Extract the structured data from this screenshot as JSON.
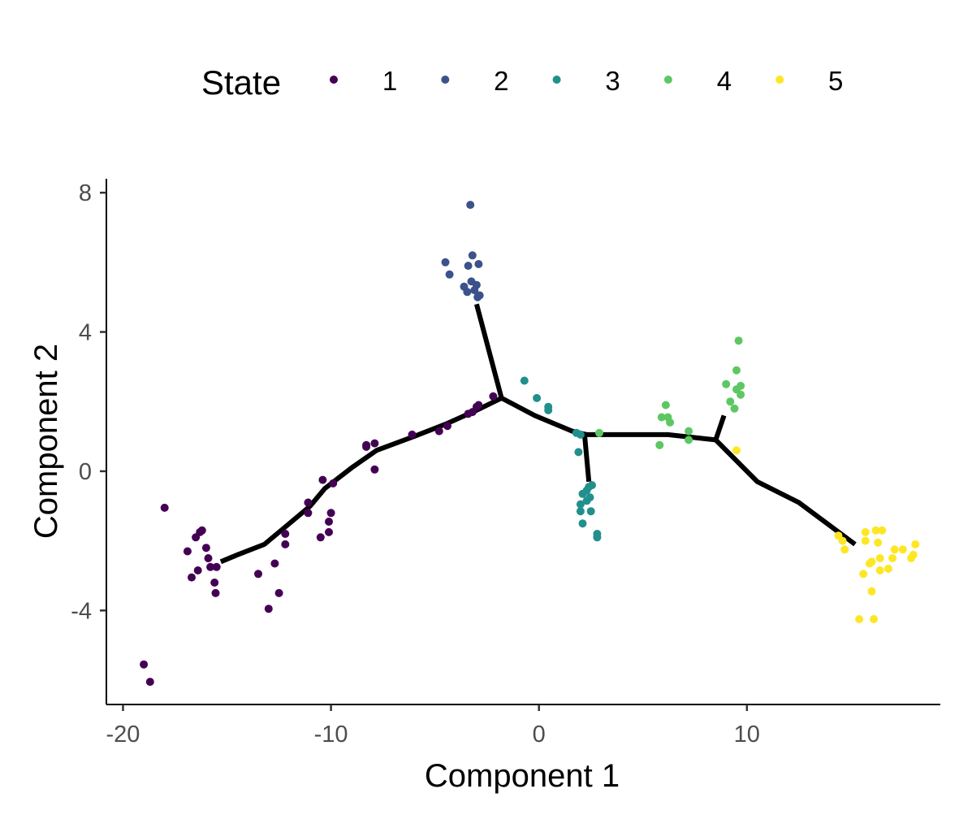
{
  "chart_data": {
    "type": "scatter",
    "title": "",
    "xlabel": "Component 1",
    "ylabel": "Component 2",
    "xlim": [
      -20.8,
      19.3
    ],
    "ylim": [
      -6.7,
      8.4
    ],
    "xticks": [
      -20,
      -10,
      0,
      10
    ],
    "yticks": [
      -4,
      0,
      4,
      8
    ],
    "xtick_labels": [
      "-20",
      "-10",
      "0",
      "10"
    ],
    "ytick_labels": [
      "-4",
      "0",
      "4",
      "8"
    ],
    "grid": false,
    "legend": {
      "title": "State",
      "position": "top",
      "entries": [
        "1",
        "2",
        "3",
        "4",
        "5"
      ]
    },
    "colors": {
      "1": "#440154",
      "2": "#3b528b",
      "3": "#21908c",
      "4": "#5dc863",
      "5": "#fde725"
    },
    "trajectory": [
      [
        [
          -15.3,
          -2.6
        ],
        [
          -14.5,
          -2.4
        ],
        [
          -13.2,
          -2.1
        ],
        [
          -12.2,
          -1.6
        ],
        [
          -11.0,
          -1.0
        ],
        [
          -10.3,
          -0.5
        ],
        [
          -9.0,
          0.1
        ],
        [
          -7.8,
          0.6
        ],
        [
          -6.0,
          1.0
        ],
        [
          -4.5,
          1.35
        ],
        [
          -3.0,
          1.75
        ],
        [
          -1.8,
          2.1
        ]
      ],
      [
        [
          -3.0,
          4.8
        ],
        [
          -1.8,
          2.1
        ]
      ],
      [
        [
          -1.8,
          2.1
        ],
        [
          -0.2,
          1.6
        ],
        [
          1.6,
          1.15
        ],
        [
          2.3,
          1.05
        ],
        [
          4.0,
          1.05
        ],
        [
          6.2,
          1.05
        ],
        [
          8.5,
          0.9
        ]
      ],
      [
        [
          2.2,
          1.0
        ],
        [
          2.4,
          -0.3
        ]
      ],
      [
        [
          8.5,
          0.9
        ],
        [
          8.9,
          1.6
        ]
      ],
      [
        [
          8.5,
          0.9
        ],
        [
          10.5,
          -0.3
        ],
        [
          12.5,
          -0.9
        ],
        [
          15.2,
          -2.1
        ]
      ]
    ],
    "series": [
      {
        "name": "1",
        "points": [
          [
            -19.0,
            -5.55
          ],
          [
            -18.7,
            -6.05
          ],
          [
            -18.0,
            -1.05
          ],
          [
            -16.9,
            -2.3
          ],
          [
            -16.7,
            -3.05
          ],
          [
            -16.5,
            -1.9
          ],
          [
            -16.4,
            -2.85
          ],
          [
            -16.3,
            -1.75
          ],
          [
            -16.2,
            -1.7
          ],
          [
            -16.0,
            -2.2
          ],
          [
            -15.9,
            -2.5
          ],
          [
            -15.8,
            -2.75
          ],
          [
            -15.6,
            -3.2
          ],
          [
            -15.55,
            -3.5
          ],
          [
            -15.5,
            -2.75
          ],
          [
            -13.5,
            -2.95
          ],
          [
            -13.0,
            -3.95
          ],
          [
            -12.7,
            -2.65
          ],
          [
            -12.5,
            -3.5
          ],
          [
            -12.2,
            -1.8
          ],
          [
            -12.2,
            -2.1
          ],
          [
            -11.1,
            -0.9
          ],
          [
            -11.1,
            -1.2
          ],
          [
            -10.5,
            -1.9
          ],
          [
            -10.4,
            -0.25
          ],
          [
            -10.1,
            -1.45
          ],
          [
            -10.1,
            -1.75
          ],
          [
            -10.0,
            -1.2
          ],
          [
            -9.9,
            -0.35
          ],
          [
            -8.3,
            0.75
          ],
          [
            -8.3,
            0.7
          ],
          [
            -7.9,
            0.8
          ],
          [
            -7.9,
            0.05
          ],
          [
            -6.1,
            1.05
          ],
          [
            -4.8,
            1.15
          ],
          [
            -4.4,
            1.3
          ],
          [
            -3.4,
            1.65
          ],
          [
            -3.2,
            1.7
          ],
          [
            -3.0,
            1.85
          ],
          [
            -2.9,
            1.9
          ],
          [
            -2.2,
            2.15
          ]
        ]
      },
      {
        "name": "2",
        "points": [
          [
            -3.3,
            7.65
          ],
          [
            -4.5,
            6.0
          ],
          [
            -4.3,
            5.65
          ],
          [
            -3.6,
            5.3
          ],
          [
            -3.4,
            5.9
          ],
          [
            -3.45,
            5.15
          ],
          [
            -3.25,
            5.45
          ],
          [
            -3.2,
            6.2
          ],
          [
            -3.1,
            5.2
          ],
          [
            -3.0,
            5.35
          ],
          [
            -2.95,
            5.0
          ],
          [
            -2.9,
            5.95
          ],
          [
            -2.85,
            5.05
          ]
        ]
      },
      {
        "name": "3",
        "points": [
          [
            -0.7,
            2.6
          ],
          [
            -0.1,
            2.1
          ],
          [
            0.45,
            1.85
          ],
          [
            0.45,
            1.75
          ],
          [
            1.8,
            1.1
          ],
          [
            2.0,
            1.05
          ],
          [
            1.9,
            0.55
          ],
          [
            2.1,
            -0.65
          ],
          [
            2.0,
            -0.95
          ],
          [
            2.0,
            -1.15
          ],
          [
            2.3,
            -0.85
          ],
          [
            2.3,
            -0.55
          ],
          [
            2.1,
            -1.5
          ],
          [
            2.4,
            -0.45
          ],
          [
            2.45,
            -0.75
          ],
          [
            2.5,
            -1.15
          ],
          [
            2.55,
            -0.4
          ],
          [
            2.8,
            -1.8
          ],
          [
            2.8,
            -1.9
          ]
        ]
      },
      {
        "name": "4",
        "points": [
          [
            2.9,
            1.1
          ],
          [
            5.8,
            0.75
          ],
          [
            5.9,
            1.55
          ],
          [
            6.1,
            1.9
          ],
          [
            6.2,
            1.55
          ],
          [
            6.3,
            1.4
          ],
          [
            7.2,
            1.15
          ],
          [
            7.2,
            0.9
          ],
          [
            9.0,
            2.5
          ],
          [
            9.2,
            2.0
          ],
          [
            9.4,
            1.8
          ],
          [
            9.5,
            2.9
          ],
          [
            9.5,
            2.35
          ],
          [
            9.6,
            3.75
          ],
          [
            9.7,
            2.45
          ],
          [
            9.7,
            2.2
          ]
        ]
      },
      {
        "name": "5",
        "points": [
          [
            9.5,
            0.6
          ],
          [
            14.4,
            -1.85
          ],
          [
            14.6,
            -2.0
          ],
          [
            14.7,
            -2.25
          ],
          [
            15.4,
            -4.25
          ],
          [
            15.6,
            -2.95
          ],
          [
            15.7,
            -1.75
          ],
          [
            15.7,
            -2.0
          ],
          [
            15.9,
            -2.65
          ],
          [
            16.0,
            -3.45
          ],
          [
            16.0,
            -2.6
          ],
          [
            16.1,
            -4.25
          ],
          [
            16.2,
            -1.7
          ],
          [
            16.3,
            -2.05
          ],
          [
            16.4,
            -2.5
          ],
          [
            16.4,
            -2.85
          ],
          [
            16.5,
            -1.7
          ],
          [
            16.8,
            -2.8
          ],
          [
            17.0,
            -2.5
          ],
          [
            17.1,
            -2.25
          ],
          [
            17.5,
            -2.25
          ],
          [
            17.9,
            -2.5
          ],
          [
            18.0,
            -2.4
          ],
          [
            18.1,
            -2.1
          ]
        ]
      }
    ]
  }
}
